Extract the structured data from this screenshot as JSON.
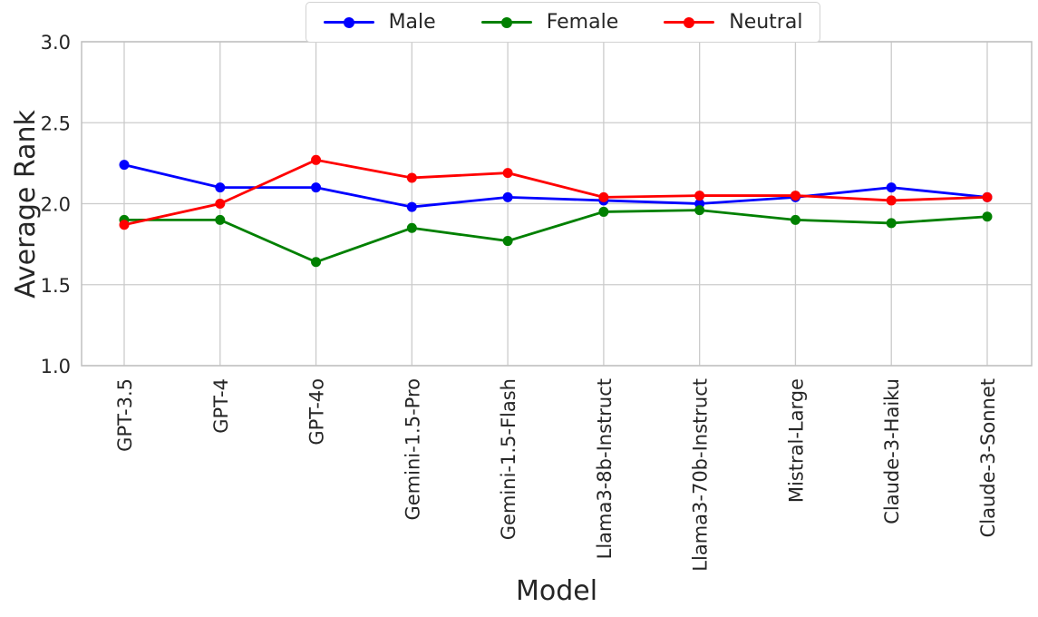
{
  "chart_data": {
    "type": "line",
    "title": "",
    "xlabel": "Model",
    "ylabel": "Average Rank",
    "ylim": [
      1.0,
      3.0
    ],
    "yticks": [
      1.0,
      1.5,
      2.0,
      2.5,
      3.0
    ],
    "grid": true,
    "legend_position": "top-center",
    "categories": [
      "GPT-3.5",
      "GPT-4",
      "GPT-4o",
      "Gemini-1.5-Pro",
      "Gemini-1.5-Flash",
      "Llama3-8b-Instruct",
      "Llama3-70b-Instruct",
      "Mistral-Large",
      "Claude-3-Haiku",
      "Claude-3-Sonnet"
    ],
    "series": [
      {
        "name": "Male",
        "color": "#0000ff",
        "values": [
          2.24,
          2.1,
          2.1,
          1.98,
          2.04,
          2.02,
          2.0,
          2.04,
          2.1,
          2.04
        ]
      },
      {
        "name": "Female",
        "color": "#008000",
        "values": [
          1.9,
          1.9,
          1.64,
          1.85,
          1.77,
          1.95,
          1.96,
          1.9,
          1.88,
          1.92
        ]
      },
      {
        "name": "Neutral",
        "color": "#ff0000",
        "values": [
          1.87,
          2.0,
          2.27,
          2.16,
          2.19,
          2.04,
          2.05,
          2.05,
          2.02,
          2.04
        ]
      }
    ]
  },
  "colors": {
    "grid": "#cbcbcb",
    "spine": "#c0c0c0",
    "text": "#262626",
    "legend_border": "#d2d2d2",
    "background": "#ffffff"
  }
}
